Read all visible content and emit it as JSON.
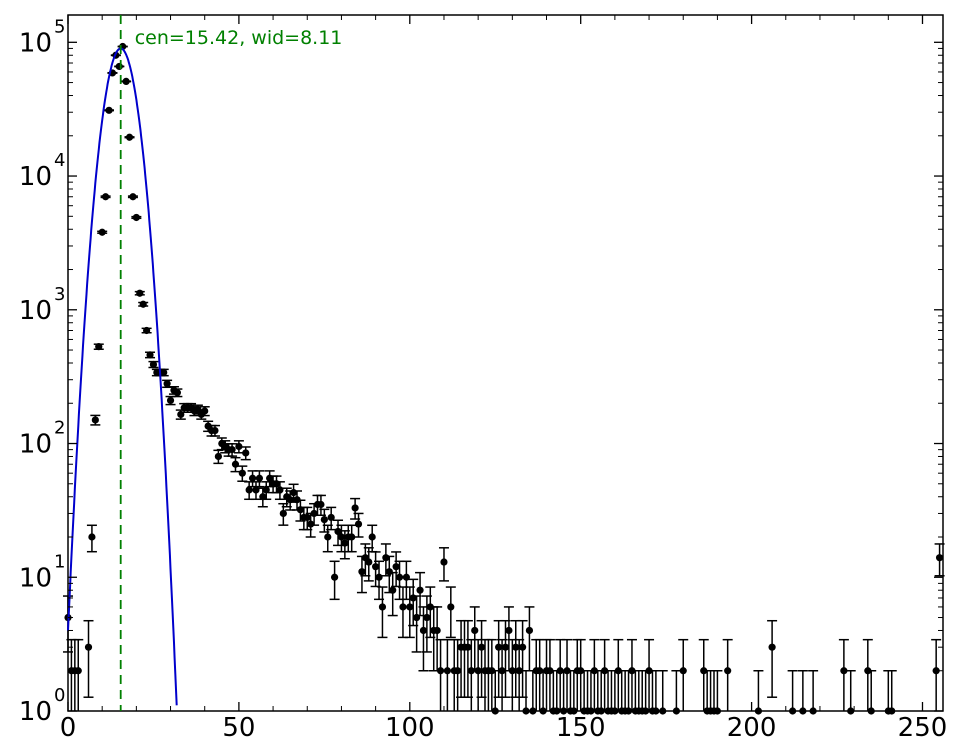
{
  "chart_data": {
    "type": "scatter",
    "title": "",
    "xlabel": "",
    "ylabel": "",
    "xlim": [
      0,
      256
    ],
    "ylim": [
      1,
      160000
    ],
    "yscale": "log",
    "grid": false,
    "annotation": "cen=15.42, wid=8.11",
    "fit_center": 15.42,
    "fit_width": 8.11,
    "fit_peak": 90000,
    "colors": {
      "data": "#000000",
      "fit": "#0000cc",
      "marker_line": "#008000"
    },
    "x_ticks": [
      "0",
      "50",
      "100",
      "150",
      "200",
      "250"
    ],
    "x_tick_values": [
      0,
      50,
      100,
      150,
      200,
      250
    ],
    "y_ticks": [
      {
        "base": "10",
        "exp": "0",
        "value": 1
      },
      {
        "base": "10",
        "exp": "1",
        "value": 10
      },
      {
        "base": "10",
        "exp": "2",
        "value": 100
      },
      {
        "base": "10",
        "exp": "3",
        "value": 1000
      },
      {
        "base": "10",
        "exp": "4",
        "value": 10000
      },
      {
        "base": "10",
        "exp": "5",
        "value": 100000
      }
    ],
    "series": [
      {
        "type": "errorbar",
        "points": [
          [
            0,
            5
          ],
          [
            1,
            2
          ],
          [
            2,
            2
          ],
          [
            3,
            2
          ],
          [
            6,
            3
          ],
          [
            7,
            20
          ],
          [
            8,
            150
          ],
          [
            9,
            530
          ],
          [
            10,
            3800
          ],
          [
            11,
            7000
          ],
          [
            12,
            31000
          ],
          [
            13,
            59000
          ],
          [
            14,
            80000
          ],
          [
            15,
            66000
          ],
          [
            16,
            93000
          ],
          [
            17,
            51000
          ],
          [
            18,
            19500
          ],
          [
            19,
            7000
          ],
          [
            20,
            4900
          ],
          [
            21,
            1330
          ],
          [
            22,
            1100
          ],
          [
            23,
            700
          ],
          [
            24,
            460
          ],
          [
            25,
            390
          ],
          [
            26,
            340
          ],
          [
            27,
            340
          ],
          [
            28,
            340
          ],
          [
            29,
            280
          ],
          [
            30,
            210
          ],
          [
            31,
            250
          ],
          [
            32,
            240
          ],
          [
            33,
            165
          ],
          [
            34,
            185
          ],
          [
            35,
            185
          ],
          [
            36,
            185
          ],
          [
            37,
            175
          ],
          [
            38,
            180
          ],
          [
            39,
            165
          ],
          [
            40,
            175
          ],
          [
            41,
            135
          ],
          [
            42,
            125
          ],
          [
            43,
            125
          ],
          [
            44,
            80
          ],
          [
            45,
            100
          ],
          [
            46,
            95
          ],
          [
            47,
            90
          ],
          [
            48,
            90
          ],
          [
            49,
            70
          ],
          [
            50,
            95
          ],
          [
            51,
            60
          ],
          [
            52,
            85
          ],
          [
            53,
            45
          ],
          [
            54,
            55
          ],
          [
            55,
            45
          ],
          [
            56,
            55
          ],
          [
            57,
            40
          ],
          [
            58,
            45
          ],
          [
            59,
            55
          ],
          [
            60,
            50
          ],
          [
            61,
            50
          ],
          [
            62,
            45
          ],
          [
            63,
            30
          ],
          [
            64,
            40
          ],
          [
            65,
            38
          ],
          [
            66,
            43
          ],
          [
            67,
            38
          ],
          [
            68,
            32
          ],
          [
            69,
            28
          ],
          [
            70,
            28
          ],
          [
            71,
            25
          ],
          [
            72,
            30
          ],
          [
            73,
            35
          ],
          [
            74,
            35
          ],
          [
            75,
            27
          ],
          [
            76,
            20
          ],
          [
            77,
            28
          ],
          [
            78,
            10
          ],
          [
            79,
            22
          ],
          [
            80,
            20
          ],
          [
            81,
            18
          ],
          [
            82,
            20
          ],
          [
            83,
            20
          ],
          [
            84,
            33
          ],
          [
            85,
            25
          ],
          [
            86,
            11
          ],
          [
            87,
            14
          ],
          [
            88,
            13
          ],
          [
            89,
            20
          ],
          [
            90,
            12
          ],
          [
            91,
            10
          ],
          [
            92,
            6
          ],
          [
            93,
            14
          ],
          [
            94,
            11
          ],
          [
            95,
            8
          ],
          [
            96,
            12
          ],
          [
            97,
            10
          ],
          [
            98,
            6
          ],
          [
            99,
            10
          ],
          [
            100,
            6
          ],
          [
            101,
            7
          ],
          [
            102,
            5
          ],
          [
            103,
            8
          ],
          [
            104,
            4
          ],
          [
            105,
            5
          ],
          [
            106,
            6
          ],
          [
            107,
            4
          ],
          [
            108,
            4
          ],
          [
            109,
            2
          ],
          [
            110,
            13
          ],
          [
            111,
            2
          ],
          [
            112,
            6
          ],
          [
            113,
            2
          ],
          [
            114,
            2
          ],
          [
            115,
            3
          ],
          [
            116,
            3
          ],
          [
            117,
            3
          ],
          [
            118,
            2
          ],
          [
            119,
            4
          ],
          [
            120,
            2
          ],
          [
            121,
            3
          ],
          [
            122,
            2
          ],
          [
            123,
            2
          ],
          [
            124,
            2
          ],
          [
            125,
            1
          ],
          [
            126,
            3
          ],
          [
            127,
            2
          ],
          [
            128,
            3
          ],
          [
            129,
            4
          ],
          [
            130,
            2
          ],
          [
            131,
            3
          ],
          [
            132,
            2
          ],
          [
            133,
            3
          ],
          [
            134,
            1
          ],
          [
            135,
            4
          ],
          [
            136,
            1
          ],
          [
            137,
            2
          ],
          [
            138,
            2
          ],
          [
            139,
            1
          ],
          [
            140,
            2
          ],
          [
            141,
            2
          ],
          [
            142,
            1
          ],
          [
            143,
            1
          ],
          [
            144,
            2
          ],
          [
            145,
            1
          ],
          [
            146,
            2
          ],
          [
            147,
            1
          ],
          [
            148,
            1
          ],
          [
            149,
            2
          ],
          [
            150,
            2
          ],
          [
            151,
            1
          ],
          [
            152,
            1
          ],
          [
            153,
            1
          ],
          [
            154,
            2
          ],
          [
            155,
            1
          ],
          [
            156,
            1
          ],
          [
            157,
            2
          ],
          [
            158,
            1
          ],
          [
            159,
            1
          ],
          [
            160,
            1
          ],
          [
            161,
            2
          ],
          [
            162,
            1
          ],
          [
            163,
            1
          ],
          [
            164,
            1
          ],
          [
            165,
            2
          ],
          [
            166,
            1
          ],
          [
            167,
            1
          ],
          [
            168,
            1
          ],
          [
            169,
            1
          ],
          [
            170,
            2
          ],
          [
            171,
            1
          ],
          [
            172,
            1
          ],
          [
            174,
            1
          ],
          [
            178,
            1
          ],
          [
            180,
            2
          ],
          [
            186,
            2
          ],
          [
            187,
            1
          ],
          [
            188,
            1
          ],
          [
            189,
            1
          ],
          [
            190,
            1
          ],
          [
            193,
            2
          ],
          [
            202,
            1
          ],
          [
            206,
            3
          ],
          [
            212,
            1
          ],
          [
            215,
            1
          ],
          [
            218,
            1
          ],
          [
            227,
            2
          ],
          [
            229,
            1
          ],
          [
            234,
            2
          ],
          [
            235,
            1
          ],
          [
            240,
            1
          ],
          [
            241,
            1
          ],
          [
            254,
            2
          ],
          [
            255,
            14
          ]
        ]
      }
    ]
  }
}
